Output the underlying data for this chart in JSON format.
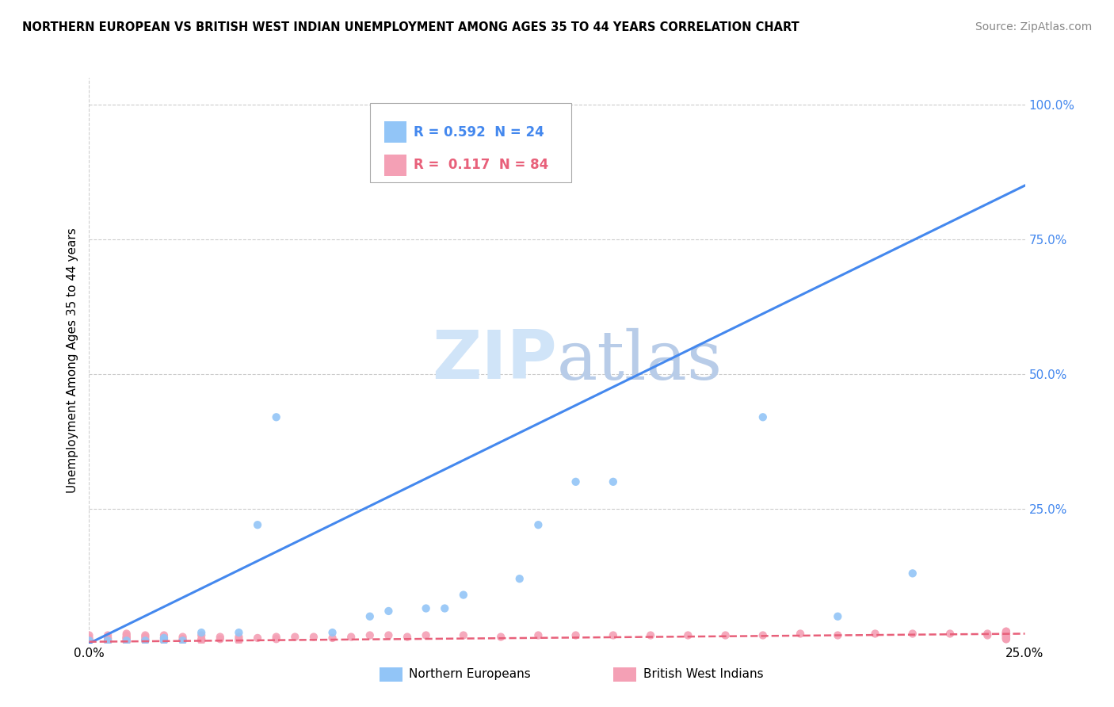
{
  "title": "NORTHERN EUROPEAN VS BRITISH WEST INDIAN UNEMPLOYMENT AMONG AGES 35 TO 44 YEARS CORRELATION CHART",
  "source": "Source: ZipAtlas.com",
  "ylabel": "Unemployment Among Ages 35 to 44 years",
  "xlim": [
    0.0,
    0.25
  ],
  "ylim": [
    0.0,
    1.05
  ],
  "xtick_labels": [
    "0.0%",
    "25.0%"
  ],
  "xtick_vals": [
    0.0,
    0.25
  ],
  "ytick_labels": [
    "25.0%",
    "50.0%",
    "75.0%",
    "100.0%"
  ],
  "ytick_vals": [
    0.25,
    0.5,
    0.75,
    1.0
  ],
  "r_ne": 0.592,
  "n_ne": 24,
  "r_bwi": 0.117,
  "n_bwi": 84,
  "ne_color": "#92c5f7",
  "bwi_color": "#f4a0b5",
  "ne_line_color": "#4488ee",
  "bwi_line_color": "#e8607a",
  "watermark_color": "#d0e4f8",
  "legend_label_ne": "Northern Europeans",
  "legend_label_bwi": "British West Indians",
  "ne_scatter_x": [
    0.0,
    0.005,
    0.01,
    0.015,
    0.02,
    0.02,
    0.025,
    0.03,
    0.04,
    0.045,
    0.05,
    0.065,
    0.075,
    0.08,
    0.09,
    0.095,
    0.1,
    0.115,
    0.12,
    0.13,
    0.14,
    0.18,
    0.2,
    0.22
  ],
  "ne_scatter_y": [
    0.005,
    0.005,
    0.005,
    0.005,
    0.005,
    0.01,
    0.005,
    0.02,
    0.02,
    0.22,
    0.42,
    0.02,
    0.05,
    0.06,
    0.065,
    0.065,
    0.09,
    0.12,
    0.22,
    0.3,
    0.3,
    0.42,
    0.05,
    0.13
  ],
  "bwi_scatter_x": [
    0.0,
    0.0,
    0.0,
    0.0,
    0.0,
    0.005,
    0.005,
    0.005,
    0.005,
    0.005,
    0.01,
    0.01,
    0.01,
    0.01,
    0.01,
    0.01,
    0.01,
    0.01,
    0.01,
    0.015,
    0.015,
    0.015,
    0.015,
    0.02,
    0.02,
    0.02,
    0.02,
    0.025,
    0.025,
    0.025,
    0.03,
    0.03,
    0.03,
    0.035,
    0.035,
    0.04,
    0.04,
    0.04,
    0.045,
    0.05,
    0.05,
    0.055,
    0.06,
    0.065,
    0.07,
    0.075,
    0.08,
    0.085,
    0.09,
    0.1,
    0.11,
    0.12,
    0.13,
    0.14,
    0.15,
    0.16,
    0.17,
    0.18,
    0.19,
    0.2,
    0.21,
    0.22,
    0.23,
    0.24,
    0.24,
    0.245,
    0.245,
    0.245,
    0.245,
    0.245,
    0.245,
    0.245,
    0.245,
    0.245,
    0.245,
    0.245,
    0.245,
    0.245,
    0.245,
    0.245,
    0.245,
    0.245,
    0.245,
    0.245
  ],
  "bwi_scatter_y": [
    0.005,
    0.005,
    0.008,
    0.01,
    0.015,
    0.003,
    0.005,
    0.008,
    0.01,
    0.015,
    0.003,
    0.005,
    0.005,
    0.008,
    0.01,
    0.01,
    0.012,
    0.015,
    0.018,
    0.005,
    0.008,
    0.012,
    0.015,
    0.005,
    0.007,
    0.01,
    0.015,
    0.005,
    0.008,
    0.012,
    0.005,
    0.008,
    0.015,
    0.008,
    0.012,
    0.005,
    0.008,
    0.012,
    0.01,
    0.008,
    0.012,
    0.012,
    0.012,
    0.01,
    0.012,
    0.015,
    0.015,
    0.012,
    0.015,
    0.015,
    0.012,
    0.015,
    0.015,
    0.015,
    0.015,
    0.015,
    0.015,
    0.015,
    0.018,
    0.015,
    0.018,
    0.018,
    0.018,
    0.015,
    0.018,
    0.008,
    0.008,
    0.01,
    0.01,
    0.012,
    0.012,
    0.015,
    0.015,
    0.015,
    0.015,
    0.015,
    0.018,
    0.018,
    0.018,
    0.018,
    0.02,
    0.02,
    0.022,
    0.022
  ],
  "ne_line_x": [
    0.0,
    0.25
  ],
  "ne_line_y": [
    0.0,
    0.85
  ],
  "bwi_line_x": [
    0.0,
    0.25
  ],
  "bwi_line_y": [
    0.003,
    0.018
  ]
}
